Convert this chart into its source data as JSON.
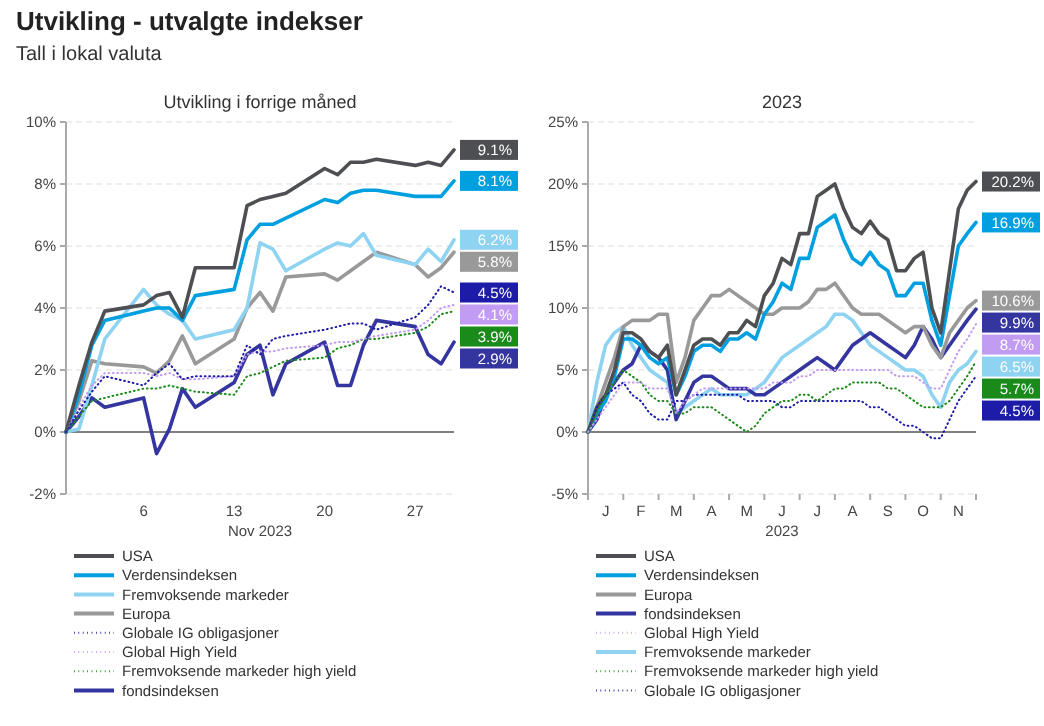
{
  "chart_data": [
    {
      "type": "other",
      "title": "Utvikling - utvalgte indekser",
      "subtitle": "Tall i lokal valuta"
    },
    {
      "type": "line",
      "title": "Utvikling i forrige måned",
      "xlabel": "Nov 2023",
      "legend": "bottom",
      "grid": "y",
      "x": [
        "2023-10-31",
        "2023-11-01",
        "2023-11-02",
        "2023-11-03",
        "2023-11-06",
        "2023-11-07",
        "2023-11-08",
        "2023-11-09",
        "2023-11-10",
        "2023-11-13",
        "2023-11-14",
        "2023-11-15",
        "2023-11-16",
        "2023-11-17",
        "2023-11-20",
        "2023-11-21",
        "2023-11-22",
        "2023-11-23",
        "2023-11-24",
        "2023-11-27",
        "2023-11-28",
        "2023-11-29",
        "2023-11-30"
      ],
      "xlim": [
        "2023-10-31",
        "2023-11-30"
      ],
      "xticks": [
        {
          "value": "2023-11-06",
          "label": "6"
        },
        {
          "value": "2023-11-13",
          "label": "13"
        },
        {
          "value": "2023-11-20",
          "label": "20"
        },
        {
          "value": "2023-11-27",
          "label": "27"
        }
      ],
      "ylim": [
        -2,
        10
      ],
      "yticks": [
        {
          "value": -2,
          "label": "-2%"
        },
        {
          "value": 0,
          "label": "0%"
        },
        {
          "value": 2,
          "label": "2%"
        },
        {
          "value": 4,
          "label": "4%"
        },
        {
          "value": 6,
          "label": "6%"
        },
        {
          "value": 8,
          "label": "8%"
        },
        {
          "value": 10,
          "label": "10%"
        }
      ],
      "ref_lines": [
        {
          "axis": "y",
          "value": 0,
          "label": null,
          "color": "#808080"
        }
      ],
      "series": [
        {
          "name": "USA",
          "color": "#4d4f53",
          "line_style": "solid",
          "values": [
            0,
            1.5,
            2.9,
            3.9,
            4.1,
            4.4,
            4.5,
            3.7,
            5.3,
            5.3,
            7.3,
            7.5,
            7.6,
            7.7,
            8.5,
            8.3,
            8.7,
            8.7,
            8.8,
            8.6,
            8.7,
            8.6,
            9.1
          ],
          "value_labels": [
            null,
            null,
            null,
            null,
            null,
            null,
            null,
            null,
            null,
            null,
            null,
            null,
            null,
            null,
            null,
            null,
            null,
            null,
            null,
            null,
            null,
            null,
            "9.1%"
          ]
        },
        {
          "name": "Verdensindeksen",
          "color": "#00a0e0",
          "line_style": "solid",
          "values": [
            0,
            1.2,
            2.8,
            3.6,
            3.9,
            4.0,
            4.0,
            3.6,
            4.4,
            4.6,
            6.2,
            6.7,
            6.7,
            6.9,
            7.5,
            7.4,
            7.7,
            7.8,
            7.8,
            7.6,
            7.6,
            7.6,
            8.1
          ],
          "value_labels": [
            null,
            null,
            null,
            null,
            null,
            null,
            null,
            null,
            null,
            null,
            null,
            null,
            null,
            null,
            null,
            null,
            null,
            null,
            null,
            null,
            null,
            null,
            "8.1%"
          ]
        },
        {
          "name": "Fremvoksende markeder",
          "color": "#8fd3f2",
          "line_style": "solid",
          "values": [
            0,
            0.1,
            1.5,
            3.0,
            4.6,
            4.1,
            3.8,
            3.6,
            3.0,
            3.3,
            4.0,
            6.1,
            5.9,
            5.2,
            5.9,
            6.1,
            6.0,
            6.4,
            5.7,
            5.4,
            5.9,
            5.5,
            6.2
          ],
          "value_labels": [
            null,
            null,
            null,
            null,
            null,
            null,
            null,
            null,
            null,
            null,
            null,
            null,
            null,
            null,
            null,
            null,
            null,
            null,
            null,
            null,
            null,
            null,
            "6.2%"
          ]
        },
        {
          "name": "Europa",
          "color": "#999999",
          "line_style": "solid",
          "values": [
            0,
            1.0,
            2.3,
            2.2,
            2.1,
            1.9,
            2.3,
            3.1,
            2.2,
            3.0,
            4.0,
            4.5,
            3.9,
            5.0,
            5.1,
            4.9,
            5.2,
            5.5,
            5.8,
            5.4,
            5.0,
            5.3,
            5.8
          ],
          "value_labels": [
            null,
            null,
            null,
            null,
            null,
            null,
            null,
            null,
            null,
            null,
            null,
            null,
            null,
            null,
            null,
            null,
            null,
            null,
            null,
            null,
            null,
            null,
            "5.8%"
          ]
        },
        {
          "name": "Globale IG obligasjoner",
          "color": "#1c1ca8",
          "line_style": "dotted",
          "values": [
            0,
            0.7,
            1.3,
            1.8,
            1.5,
            1.9,
            2.2,
            1.7,
            1.8,
            1.8,
            2.8,
            2.5,
            3.0,
            3.1,
            3.3,
            3.4,
            3.5,
            3.5,
            3.3,
            3.7,
            4.1,
            4.7,
            4.5
          ],
          "value_labels": [
            null,
            null,
            null,
            null,
            null,
            null,
            null,
            null,
            null,
            null,
            null,
            null,
            null,
            null,
            null,
            null,
            null,
            null,
            null,
            null,
            null,
            null,
            "4.5%"
          ]
        },
        {
          "name": "Global High Yield",
          "color": "#c29cf2",
          "line_style": "dotted",
          "values": [
            0,
            0.8,
            1.5,
            1.9,
            1.9,
            1.8,
            1.9,
            1.7,
            1.7,
            1.8,
            2.5,
            2.6,
            2.6,
            2.7,
            2.8,
            2.9,
            2.9,
            3.0,
            3.1,
            3.3,
            3.6,
            4.0,
            4.1
          ],
          "value_labels": [
            null,
            null,
            null,
            null,
            null,
            null,
            null,
            null,
            null,
            null,
            null,
            null,
            null,
            null,
            null,
            null,
            null,
            null,
            null,
            null,
            null,
            null,
            "4.1%"
          ]
        },
        {
          "name": "Fremvoksende markeder high yield",
          "color": "#1a8a1a",
          "line_style": "dotted",
          "values": [
            0,
            0.5,
            1.0,
            1.1,
            1.4,
            1.4,
            1.5,
            1.4,
            1.3,
            1.2,
            1.8,
            1.9,
            2.1,
            2.3,
            2.4,
            2.7,
            2.8,
            3.0,
            3.0,
            3.2,
            3.4,
            3.8,
            3.9
          ],
          "value_labels": [
            null,
            null,
            null,
            null,
            null,
            null,
            null,
            null,
            null,
            null,
            null,
            null,
            null,
            null,
            null,
            null,
            null,
            null,
            null,
            null,
            null,
            null,
            "3.9%"
          ]
        },
        {
          "name": "fondsindeksen",
          "color": "#3535a0",
          "line_style": "solid",
          "values": [
            0,
            0.5,
            1.1,
            0.8,
            1.1,
            -0.7,
            0.1,
            1.4,
            0.8,
            1.6,
            2.5,
            2.8,
            1.2,
            2.2,
            2.9,
            1.5,
            1.5,
            2.8,
            3.6,
            3.4,
            2.5,
            2.2,
            2.9
          ],
          "value_labels": [
            null,
            null,
            null,
            null,
            null,
            null,
            null,
            null,
            null,
            null,
            null,
            null,
            null,
            null,
            null,
            null,
            null,
            null,
            null,
            null,
            null,
            null,
            "2.9%"
          ]
        }
      ]
    },
    {
      "type": "line",
      "title": "2023",
      "xlabel": "2023",
      "legend": "bottom",
      "grid": "y",
      "categories": [
        null,
        null,
        "J",
        null,
        null,
        null,
        "F",
        null,
        null,
        null,
        "M",
        null,
        null,
        null,
        "A",
        null,
        null,
        null,
        "M",
        null,
        null,
        null,
        "J",
        null,
        null,
        null,
        "J",
        null,
        null,
        null,
        "A",
        null,
        null,
        null,
        "S",
        null,
        null,
        null,
        "O",
        null,
        null,
        null,
        "N",
        null,
        null
      ],
      "ylim": [
        -5,
        25
      ],
      "yticks": [
        {
          "value": -5,
          "label": "-5%"
        },
        {
          "value": 0,
          "label": "0%"
        },
        {
          "value": 5,
          "label": "5%"
        },
        {
          "value": 10,
          "label": "10%"
        },
        {
          "value": 15,
          "label": "15%"
        },
        {
          "value": 20,
          "label": "20%"
        },
        {
          "value": 25,
          "label": "25%"
        }
      ],
      "ref_lines": [
        {
          "axis": "y",
          "value": 0,
          "label": null,
          "color": "#808080"
        }
      ],
      "series": [
        {
          "name": "USA",
          "color": "#4d4f53",
          "line_style": "solid",
          "values": [
            0,
            2,
            3,
            5,
            8,
            8,
            7.5,
            6.5,
            6,
            7,
            3,
            5,
            7,
            7.5,
            7.5,
            7,
            8,
            8,
            9,
            8.5,
            11,
            12,
            14,
            13.5,
            16,
            16,
            19,
            19.5,
            20,
            18,
            16.5,
            16,
            17,
            16,
            15.5,
            13,
            13,
            14,
            14.5,
            10,
            8,
            13,
            18,
            19.5,
            20.2
          ],
          "value_labels": [
            null,
            null,
            null,
            null,
            null,
            null,
            null,
            null,
            null,
            null,
            null,
            null,
            null,
            null,
            null,
            null,
            null,
            null,
            null,
            null,
            null,
            null,
            null,
            null,
            null,
            null,
            null,
            null,
            null,
            null,
            null,
            null,
            null,
            null,
            null,
            null,
            null,
            null,
            null,
            null,
            null,
            null,
            null,
            null,
            "20.2%"
          ]
        },
        {
          "name": "Verdensindeksen",
          "color": "#00a0e0",
          "line_style": "solid",
          "values": [
            0,
            1.5,
            2.5,
            4.5,
            7.5,
            7.5,
            7,
            6,
            5.5,
            6,
            3,
            4.5,
            6.5,
            7,
            7,
            6.5,
            7.5,
            7.5,
            8,
            7.5,
            9.5,
            10.5,
            12,
            11.5,
            14,
            14,
            16.5,
            17,
            17.5,
            15.5,
            14,
            13.5,
            14.5,
            13.5,
            13,
            11,
            11,
            12,
            12,
            9,
            7,
            11,
            15,
            16,
            16.9
          ],
          "value_labels": [
            null,
            null,
            null,
            null,
            null,
            null,
            null,
            null,
            null,
            null,
            null,
            null,
            null,
            null,
            null,
            null,
            null,
            null,
            null,
            null,
            null,
            null,
            null,
            null,
            null,
            null,
            null,
            null,
            null,
            null,
            null,
            null,
            null,
            null,
            null,
            null,
            null,
            null,
            null,
            null,
            null,
            null,
            null,
            null,
            "16.9%"
          ]
        },
        {
          "name": "Europa",
          "color": "#999999",
          "line_style": "solid",
          "values": [
            0,
            2,
            4,
            6,
            8.5,
            9,
            9,
            9,
            9.5,
            9.5,
            4,
            6,
            9,
            10,
            11,
            11,
            11.5,
            11,
            10.5,
            10,
            9.5,
            9.5,
            10,
            10,
            10,
            10.5,
            11.5,
            11.5,
            12,
            11,
            10,
            9.5,
            9.5,
            9.5,
            9,
            8.5,
            8,
            8.5,
            8.5,
            7,
            6,
            8,
            9,
            10,
            10.6
          ],
          "value_labels": [
            null,
            null,
            null,
            null,
            null,
            null,
            null,
            null,
            null,
            null,
            null,
            null,
            null,
            null,
            null,
            null,
            null,
            null,
            null,
            null,
            null,
            null,
            null,
            null,
            null,
            null,
            null,
            null,
            null,
            null,
            null,
            null,
            null,
            null,
            null,
            null,
            null,
            null,
            null,
            null,
            null,
            null,
            null,
            null,
            "10.6%"
          ]
        },
        {
          "name": "fondsindeksen",
          "color": "#3535a0",
          "line_style": "solid",
          "values": [
            0,
            1,
            3,
            4,
            5,
            5.5,
            7,
            6.5,
            6,
            5,
            1,
            2.5,
            4,
            4.5,
            4.5,
            4,
            3.5,
            3.5,
            3.5,
            3,
            3,
            3.5,
            4,
            4.5,
            5,
            5.5,
            6,
            5.5,
            5,
            6,
            7,
            7.5,
            8,
            7.5,
            7,
            6.5,
            6,
            7,
            8.5,
            7.5,
            6,
            7,
            8,
            9,
            9.9
          ],
          "value_labels": [
            null,
            null,
            null,
            null,
            null,
            null,
            null,
            null,
            null,
            null,
            null,
            null,
            null,
            null,
            null,
            null,
            null,
            null,
            null,
            null,
            null,
            null,
            null,
            null,
            null,
            null,
            null,
            null,
            null,
            null,
            null,
            null,
            null,
            null,
            null,
            null,
            null,
            null,
            null,
            null,
            null,
            null,
            null,
            null,
            "9.9%"
          ]
        },
        {
          "name": "Global High Yield",
          "color": "#c29cf2",
          "line_style": "dotted",
          "values": [
            0,
            1,
            2,
            3,
            4,
            4,
            4,
            3.5,
            3.5,
            3.5,
            1.5,
            2.5,
            3,
            3.5,
            3.5,
            3.5,
            3.5,
            3.5,
            3.5,
            3.5,
            3.5,
            4,
            4,
            4,
            4.5,
            4.5,
            5,
            5,
            5,
            5,
            5,
            5,
            5,
            5,
            5,
            4.5,
            4.5,
            4.5,
            4,
            3.5,
            3.5,
            5,
            6.5,
            7.5,
            8.7
          ],
          "value_labels": [
            null,
            null,
            null,
            null,
            null,
            null,
            null,
            null,
            null,
            null,
            null,
            null,
            null,
            null,
            null,
            null,
            null,
            null,
            null,
            null,
            null,
            null,
            null,
            null,
            null,
            null,
            null,
            null,
            null,
            null,
            null,
            null,
            null,
            null,
            null,
            null,
            null,
            null,
            null,
            null,
            null,
            null,
            null,
            null,
            "8.7%"
          ]
        },
        {
          "name": "Fremvoksende markeder",
          "color": "#8fd3f2",
          "line_style": "solid",
          "values": [
            0,
            4,
            7,
            8,
            8.5,
            7,
            6,
            5,
            4.5,
            4,
            1.5,
            2,
            2.5,
            3,
            3.5,
            3,
            3,
            3,
            3,
            3.5,
            4,
            5,
            6,
            6.5,
            7,
            7.5,
            8,
            8.5,
            9.5,
            9.5,
            9,
            8,
            7,
            6.5,
            6,
            5.5,
            5,
            5,
            4.5,
            3,
            2,
            4,
            5,
            5.5,
            6.5
          ],
          "value_labels": [
            null,
            null,
            null,
            null,
            null,
            null,
            null,
            null,
            null,
            null,
            null,
            null,
            null,
            null,
            null,
            null,
            null,
            null,
            null,
            null,
            null,
            null,
            null,
            null,
            null,
            null,
            null,
            null,
            null,
            null,
            null,
            null,
            null,
            null,
            null,
            null,
            null,
            null,
            null,
            null,
            null,
            null,
            null,
            null,
            "6.5%"
          ]
        },
        {
          "name": "Fremvoksende markeder high yield",
          "color": "#1a8a1a",
          "line_style": "dotted",
          "values": [
            0,
            1.5,
            3,
            4,
            5,
            4.5,
            4,
            3,
            2.5,
            2.5,
            1.5,
            1.5,
            2,
            2,
            2,
            1.5,
            1,
            0.5,
            0,
            0.5,
            1.5,
            2,
            2.5,
            2.5,
            3,
            3,
            2.5,
            3,
            3.5,
            3.5,
            4,
            4,
            4,
            4,
            3.5,
            3.5,
            3,
            2.5,
            2,
            2,
            2,
            2.5,
            3.5,
            4.5,
            5.7
          ],
          "value_labels": [
            null,
            null,
            null,
            null,
            null,
            null,
            null,
            null,
            null,
            null,
            null,
            null,
            null,
            null,
            null,
            null,
            null,
            null,
            null,
            null,
            null,
            null,
            null,
            null,
            null,
            null,
            null,
            null,
            null,
            null,
            null,
            null,
            null,
            null,
            null,
            null,
            null,
            null,
            null,
            null,
            null,
            null,
            null,
            null,
            "5.7%"
          ]
        },
        {
          "name": "Globale IG obligasjoner",
          "color": "#1c1ca8",
          "line_style": "dotted",
          "values": [
            0,
            2,
            3,
            3.5,
            4,
            3,
            2.5,
            1.5,
            1,
            1,
            2.5,
            2.5,
            3,
            3,
            3,
            3,
            3,
            3,
            2.5,
            2.5,
            2.5,
            2.5,
            2,
            2,
            2.5,
            2.5,
            2.5,
            2.5,
            2.5,
            2.5,
            2.5,
            2.5,
            2,
            2,
            1.5,
            1,
            0.5,
            0.5,
            0,
            -0.5,
            -0.5,
            1,
            2.5,
            3.5,
            4.5
          ],
          "value_labels": [
            null,
            null,
            null,
            null,
            null,
            null,
            null,
            null,
            null,
            null,
            null,
            null,
            null,
            null,
            null,
            null,
            null,
            null,
            null,
            null,
            null,
            null,
            null,
            null,
            null,
            null,
            null,
            null,
            null,
            null,
            null,
            null,
            null,
            null,
            null,
            null,
            null,
            null,
            null,
            null,
            null,
            null,
            null,
            null,
            "4.5%"
          ]
        }
      ]
    }
  ]
}
